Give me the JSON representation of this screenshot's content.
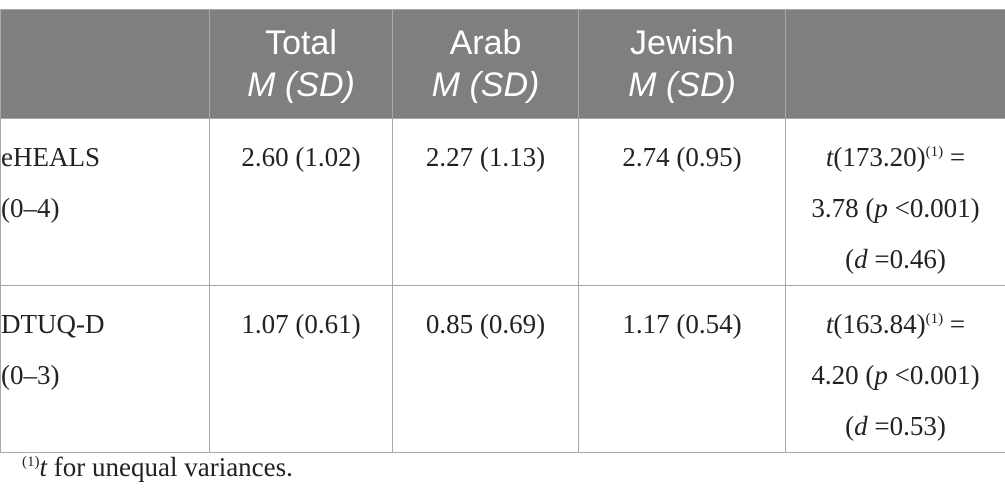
{
  "header": {
    "col0": "",
    "total": {
      "title": "Total",
      "stat": "M (SD)"
    },
    "arab": {
      "title": "Arab",
      "stat": "M (SD)"
    },
    "jewish": {
      "title": "Jewish",
      "stat": "M (SD)"
    },
    "test": ""
  },
  "rows": [
    {
      "name": "eHEALS",
      "range": "(0–4)",
      "total": "2.60 (1.02)",
      "arab": "2.27 (1.13)",
      "jewish": "2.74 (0.95)",
      "test": {
        "stat_symbol": "t",
        "df": "(173.20)",
        "note_ref": "(1)",
        "eq": " =",
        "value": "3.78 (",
        "p_symbol": "p",
        "p_text": " <0.001)",
        "d_open": "(",
        "d_symbol": "d",
        "d_text": " =0.46)"
      }
    },
    {
      "name": "DTUQ-D",
      "range": "(0–3)",
      "total": "1.07 (0.61)",
      "arab": "0.85 (0.69)",
      "jewish": "1.17 (0.54)",
      "test": {
        "stat_symbol": "t",
        "df": "(163.84)",
        "note_ref": "(1)",
        "eq": " =",
        "value": "4.20 (",
        "p_symbol": "p",
        "p_text": " <0.001)",
        "d_open": "(",
        "d_symbol": "d",
        "d_text": " =0.53)"
      }
    }
  ],
  "footnote": {
    "ref": "(1)",
    "symbol": "t",
    "text": " for unequal variances."
  }
}
